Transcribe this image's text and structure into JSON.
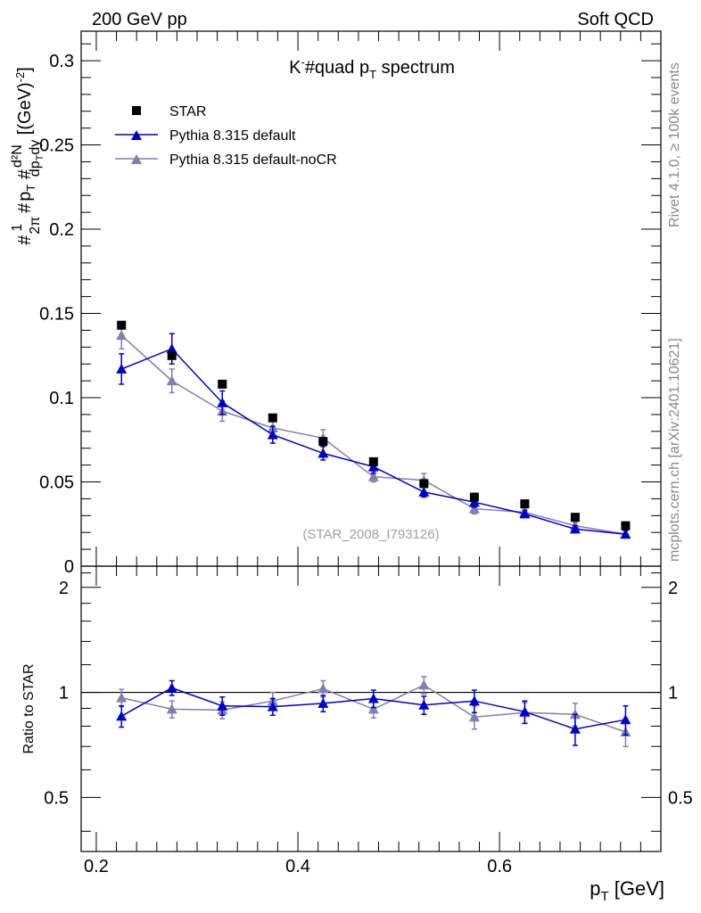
{
  "header": {
    "left": "200 GeV pp",
    "right": "Soft QCD"
  },
  "side_text": {
    "rivet": "Rivet 4.1.0, ≥ 100k events",
    "mcplots": "mcplots.cern.ch [arXiv:2401.10621]"
  },
  "watermark": "(STAR_2008_I793126)",
  "colors": {
    "data": "#000000",
    "default": "#0000cc",
    "noCR": "#8080b0",
    "frame": "#000000"
  },
  "chart_data": {
    "type": "scatter",
    "title": "K⁻#quad p_T spectrum",
    "xlabel": "p_T [GeV]",
    "ylabel_parts": {
      "frac_num": "1",
      "frac_den": "2π",
      "mid": "p_T",
      "diff_num": "d²N",
      "diff_den": "dp_T dy",
      "units": "[(GeV)⁻²]"
    },
    "ylabel_ratio": "Ratio to STAR",
    "xlim": [
      0.185,
      0.76
    ],
    "ylim_main": [
      0,
      0.3175
    ],
    "ylim_ratio": [
      0.35,
      2.3
    ],
    "xticks": [
      0.2,
      0.4,
      0.6
    ],
    "xtick_labels": [
      "0.2",
      "0.4",
      "0.6"
    ],
    "yticks_main": [
      0,
      0.05,
      0.1,
      0.15,
      0.2,
      0.25,
      0.3
    ],
    "ytick_labels_main": [
      "0",
      "0.05",
      "0.1",
      "0.15",
      "0.2",
      "0.25",
      "0.3"
    ],
    "yticks_ratio": [
      0.5,
      1,
      2
    ],
    "ytick_labels_ratio": [
      "0.5",
      "1",
      "2"
    ],
    "legend": [
      "STAR",
      "Pythia 8.315 default",
      "Pythia 8.315 default-noCR"
    ],
    "x": [
      0.225,
      0.275,
      0.325,
      0.375,
      0.425,
      0.475,
      0.525,
      0.575,
      0.625,
      0.675,
      0.725
    ],
    "series": [
      {
        "name": "STAR",
        "marker": "square",
        "values": [
          0.143,
          0.125,
          0.108,
          0.088,
          0.074,
          0.062,
          0.049,
          0.041,
          0.037,
          0.029,
          0.024
        ],
        "errors": [
          0.0,
          0.0,
          0.0,
          0.0,
          0.0,
          0.0,
          0.0,
          0.0,
          0.0,
          0.0,
          0.0
        ]
      },
      {
        "name": "Pythia 8.315 default",
        "marker": "triangle",
        "values": [
          0.117,
          0.129,
          0.097,
          0.078,
          0.067,
          0.059,
          0.044,
          0.038,
          0.031,
          0.022,
          0.019
        ],
        "errors": [
          0.009,
          0.009,
          0.007,
          0.005,
          0.004,
          0.004,
          0.003,
          0.003,
          0.002,
          0.002,
          0.002
        ]
      },
      {
        "name": "Pythia 8.315 default-noCR",
        "marker": "triangle",
        "values": [
          0.137,
          0.11,
          0.092,
          0.082,
          0.076,
          0.053,
          0.051,
          0.034,
          0.032,
          0.024,
          0.019
        ],
        "errors": [
          0.008,
          0.007,
          0.006,
          0.005,
          0.005,
          0.003,
          0.004,
          0.003,
          0.002,
          0.002,
          0.002
        ]
      }
    ],
    "ratio_series": [
      {
        "name": "Pythia 8.315 default",
        "values": [
          0.855,
          1.03,
          0.915,
          0.91,
          0.93,
          0.96,
          0.92,
          0.945,
          0.88,
          0.785,
          0.835
        ],
        "errors": [
          0.06,
          0.05,
          0.055,
          0.05,
          0.05,
          0.055,
          0.055,
          0.07,
          0.065,
          0.08,
          0.08
        ]
      },
      {
        "name": "Pythia 8.315 default-noCR",
        "values": [
          0.965,
          0.895,
          0.89,
          0.945,
          1.025,
          0.895,
          1.05,
          0.85,
          0.875,
          0.865,
          0.77
        ],
        "errors": [
          0.055,
          0.05,
          0.05,
          0.055,
          0.055,
          0.05,
          0.06,
          0.065,
          0.06,
          0.065,
          0.07
        ]
      }
    ]
  }
}
